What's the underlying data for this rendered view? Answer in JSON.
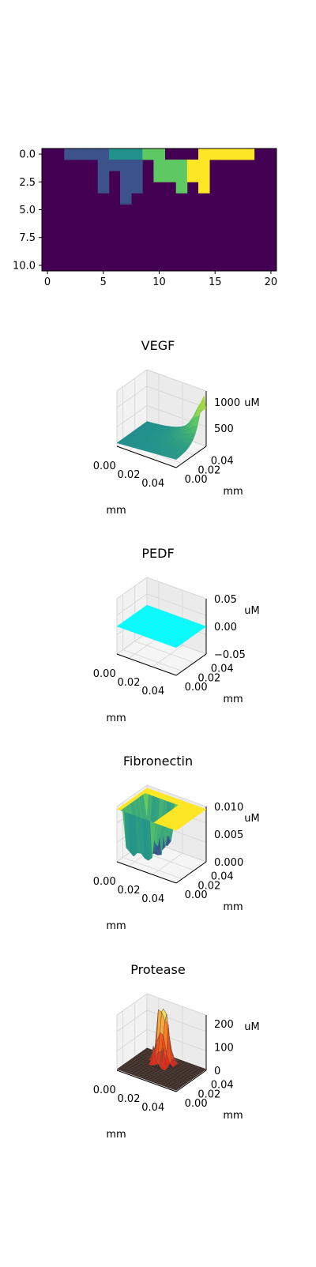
{
  "palette": {
    "viridis": [
      "#440154",
      "#3b528b",
      "#21918c",
      "#5ec962",
      "#fde725"
    ],
    "cyan": "#00ffff",
    "fibronectin_top": "#fde725",
    "protease_base": "#3a2a26",
    "protease_peak": "#e8ff70",
    "protease_mid": "#d81b1b"
  },
  "chart_data": [
    {
      "type": "heatmap",
      "colormap": "viridis",
      "xlim": [
        -0.5,
        20.5
      ],
      "ylim": [
        10.5,
        -0.5
      ],
      "x_ticks": [
        "0",
        "5",
        "10",
        "15",
        "20"
      ],
      "y_ticks": [
        "0.0",
        "2.5",
        "5.0",
        "7.5",
        "10.0"
      ],
      "grid": false,
      "cells": [
        {
          "col": 2,
          "row": 0,
          "level": 1
        },
        {
          "col": 3,
          "row": 0,
          "level": 1
        },
        {
          "col": 4,
          "row": 0,
          "level": 1
        },
        {
          "col": 5,
          "row": 0,
          "level": 1
        },
        {
          "col": 6,
          "row": 0,
          "level": 2
        },
        {
          "col": 7,
          "row": 0,
          "level": 2
        },
        {
          "col": 8,
          "row": 0,
          "level": 2
        },
        {
          "col": 9,
          "row": 0,
          "level": 3
        },
        {
          "col": 10,
          "row": 0,
          "level": 3
        },
        {
          "col": 14,
          "row": 0,
          "level": 5
        },
        {
          "col": 15,
          "row": 0,
          "level": 5
        },
        {
          "col": 16,
          "row": 0,
          "level": 5
        },
        {
          "col": 17,
          "row": 0,
          "level": 5
        },
        {
          "col": 18,
          "row": 0,
          "level": 5
        },
        {
          "col": 5,
          "row": 1,
          "level": 1
        },
        {
          "col": 6,
          "row": 1,
          "level": 1
        },
        {
          "col": 7,
          "row": 1,
          "level": 1
        },
        {
          "col": 8,
          "row": 1,
          "level": 1
        },
        {
          "col": 10,
          "row": 1,
          "level": 3
        },
        {
          "col": 11,
          "row": 1,
          "level": 3
        },
        {
          "col": 12,
          "row": 1,
          "level": 3
        },
        {
          "col": 13,
          "row": 1,
          "level": 4
        },
        {
          "col": 14,
          "row": 1,
          "level": 4
        },
        {
          "col": 5,
          "row": 2,
          "level": 1
        },
        {
          "col": 7,
          "row": 2,
          "level": 1
        },
        {
          "col": 8,
          "row": 2,
          "level": 1
        },
        {
          "col": 10,
          "row": 2,
          "level": 3
        },
        {
          "col": 11,
          "row": 2,
          "level": 3
        },
        {
          "col": 12,
          "row": 2,
          "level": 3
        },
        {
          "col": 13,
          "row": 2,
          "level": 4
        },
        {
          "col": 14,
          "row": 2,
          "level": 5
        },
        {
          "col": 5,
          "row": 3,
          "level": 1
        },
        {
          "col": 7,
          "row": 3,
          "level": 1
        },
        {
          "col": 8,
          "row": 3,
          "level": 1
        },
        {
          "col": 12,
          "row": 3,
          "level": 3
        },
        {
          "col": 14,
          "row": 3,
          "level": 5
        },
        {
          "col": 7,
          "row": 4,
          "level": 1
        }
      ]
    },
    {
      "type": "surface",
      "title": "VEGF",
      "xlabel": "mm",
      "ylabel": "mm",
      "zlabel": "uM",
      "xlim": [
        0,
        0.05
      ],
      "ylim": [
        0,
        0.05
      ],
      "zlim": [
        0,
        1100
      ],
      "x_ticks": [
        "0.00",
        "0.02",
        "0.04"
      ],
      "y_ticks": [
        "0.00",
        "0.02",
        "0.04"
      ],
      "z_ticks": [
        "500",
        "1000"
      ],
      "colormap": "viridis",
      "peak": {
        "x": 0.05,
        "y": 0.045,
        "z": 1100
      }
    },
    {
      "type": "surface",
      "title": "PEDF",
      "xlabel": "mm",
      "ylabel": "mm",
      "zlabel": "uM",
      "xlim": [
        0,
        0.05
      ],
      "ylim": [
        0,
        0.05
      ],
      "zlim": [
        -0.05,
        0.05
      ],
      "x_ticks": [
        "0.00",
        "0.02",
        "0.04"
      ],
      "y_ticks": [
        "0.00",
        "0.02",
        "0.04"
      ],
      "z_ticks": [
        "0.05",
        "0.00",
        "−0.05"
      ],
      "constant_value": 0
    },
    {
      "type": "surface",
      "title": "Fibronectin",
      "xlabel": "mm",
      "ylabel": "mm",
      "zlabel": "uM",
      "xlim": [
        0,
        0.05
      ],
      "ylim": [
        0,
        0.05
      ],
      "zlim": [
        0,
        0.01
      ],
      "x_ticks": [
        "0.00",
        "0.02",
        "0.04"
      ],
      "y_ticks": [
        "0.00",
        "0.02",
        "0.04"
      ],
      "z_ticks": [
        "0.010",
        "0.005",
        "0.000"
      ],
      "plateau_value": 0.01
    },
    {
      "type": "surface",
      "title": "Protease",
      "xlabel": "mm",
      "ylabel": "mm",
      "zlabel": "uM",
      "xlim": [
        0,
        0.05
      ],
      "ylim": [
        0,
        0.05
      ],
      "zlim": [
        0,
        250
      ],
      "x_ticks": [
        "0.00",
        "0.02",
        "0.04"
      ],
      "y_ticks": [
        "0.00",
        "0.02",
        "0.04"
      ],
      "z_ticks": [
        "200",
        "100",
        "0"
      ],
      "peak": {
        "x": 0.02,
        "y": 0.04,
        "z": 230
      }
    }
  ]
}
